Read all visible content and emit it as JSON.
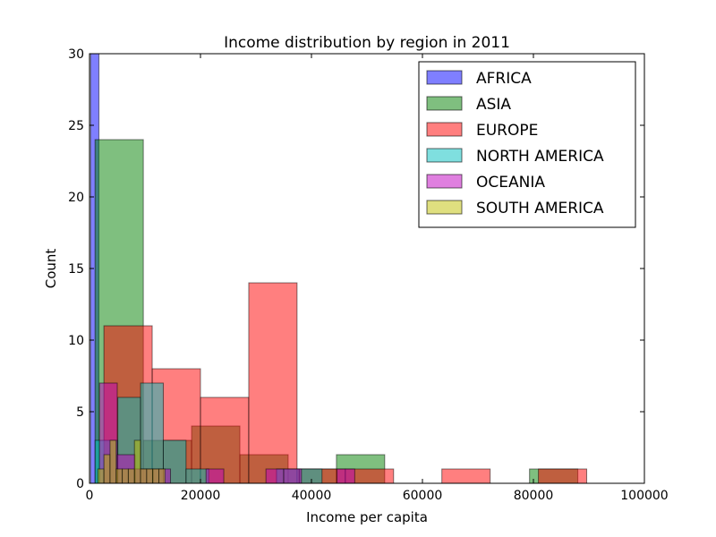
{
  "chart_data": {
    "type": "bar",
    "title": "Income distribution by region in 2011",
    "xlabel": "Income per capita",
    "ylabel": "Count",
    "xlim": [
      0,
      100000
    ],
    "ylim": [
      0,
      30
    ],
    "xticks": [
      0,
      20000,
      40000,
      60000,
      80000,
      100000
    ],
    "xtick_labels": [
      "0",
      "20000",
      "40000",
      "60000",
      "80000",
      "100000"
    ],
    "yticks": [
      0,
      5,
      10,
      15,
      20,
      25,
      30
    ],
    "ytick_labels": [
      "0",
      "5",
      "10",
      "15",
      "20",
      "25",
      "30"
    ],
    "grid": false,
    "legend_position": "top-right",
    "series": [
      {
        "name": "AFRICA",
        "color": "#0000ff",
        "bins": [
          {
            "x0": 200,
            "x1": 1700,
            "count": 30
          }
        ]
      },
      {
        "name": "ASIA",
        "color": "#008000",
        "bins": [
          {
            "x0": 1000,
            "x1": 9700,
            "count": 24
          },
          {
            "x0": 9700,
            "x1": 18400,
            "count": 3
          },
          {
            "x0": 18400,
            "x1": 27100,
            "count": 4
          },
          {
            "x0": 27100,
            "x1": 35800,
            "count": 2
          },
          {
            "x0": 35800,
            "x1": 44500,
            "count": 1
          },
          {
            "x0": 44500,
            "x1": 53200,
            "count": 2
          },
          {
            "x0": 79300,
            "x1": 88000,
            "count": 1
          }
        ]
      },
      {
        "name": "EUROPE",
        "color": "#ff0000",
        "bins": [
          {
            "x0": 2600,
            "x1": 11300,
            "count": 11
          },
          {
            "x0": 11300,
            "x1": 20000,
            "count": 8
          },
          {
            "x0": 20000,
            "x1": 28700,
            "count": 6
          },
          {
            "x0": 28700,
            "x1": 37400,
            "count": 14
          },
          {
            "x0": 37400,
            "x1": 46100,
            "count": 1
          },
          {
            "x0": 46100,
            "x1": 54800,
            "count": 1
          },
          {
            "x0": 63500,
            "x1": 72200,
            "count": 1
          },
          {
            "x0": 80900,
            "x1": 89600,
            "count": 1
          }
        ]
      },
      {
        "name": "NORTH AMERICA",
        "color": "#00bfbf",
        "bins": [
          {
            "x0": 1000,
            "x1": 5100,
            "count": 3
          },
          {
            "x0": 5100,
            "x1": 9200,
            "count": 6
          },
          {
            "x0": 9200,
            "x1": 13300,
            "count": 7
          },
          {
            "x0": 13300,
            "x1": 17400,
            "count": 3
          },
          {
            "x0": 17400,
            "x1": 21500,
            "count": 1
          },
          {
            "x0": 33700,
            "x1": 37800,
            "count": 1
          },
          {
            "x0": 37800,
            "x1": 41900,
            "count": 1
          }
        ]
      },
      {
        "name": "OCEANIA",
        "color": "#bf00bf",
        "bins": [
          {
            "x0": 1800,
            "x1": 5000,
            "count": 7
          },
          {
            "x0": 5000,
            "x1": 8200,
            "count": 2
          },
          {
            "x0": 8200,
            "x1": 11400,
            "count": 1
          },
          {
            "x0": 11400,
            "x1": 14600,
            "count": 1
          },
          {
            "x0": 21000,
            "x1": 24200,
            "count": 1
          },
          {
            "x0": 31800,
            "x1": 35000,
            "count": 1
          },
          {
            "x0": 35000,
            "x1": 38200,
            "count": 1
          },
          {
            "x0": 44600,
            "x1": 47800,
            "count": 1
          }
        ]
      },
      {
        "name": "SOUTH AMERICA",
        "color": "#bfbf00",
        "bins": [
          {
            "x0": 1500,
            "x1": 2600,
            "count": 1
          },
          {
            "x0": 2600,
            "x1": 3700,
            "count": 2
          },
          {
            "x0": 3700,
            "x1": 4800,
            "count": 3
          },
          {
            "x0": 4800,
            "x1": 5900,
            "count": 1
          },
          {
            "x0": 5900,
            "x1": 7000,
            "count": 1
          },
          {
            "x0": 7000,
            "x1": 8100,
            "count": 1
          },
          {
            "x0": 8100,
            "x1": 9200,
            "count": 3
          },
          {
            "x0": 9200,
            "x1": 10300,
            "count": 1
          },
          {
            "x0": 10300,
            "x1": 11400,
            "count": 1
          },
          {
            "x0": 11400,
            "x1": 12500,
            "count": 1
          },
          {
            "x0": 12500,
            "x1": 13600,
            "count": 1
          }
        ]
      }
    ]
  }
}
